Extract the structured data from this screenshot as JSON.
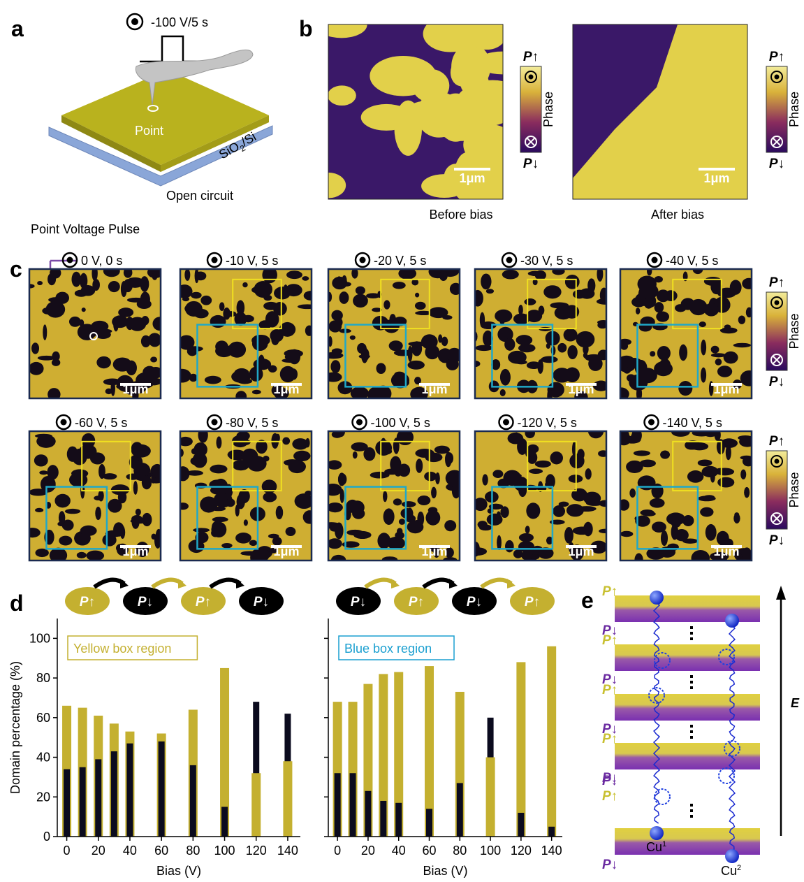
{
  "panel_a": {
    "label": "a",
    "pulse": "-100 V/5 s",
    "point": "Point",
    "substrate": "SiO",
    "substrate_sub": "2",
    "substrate_rest": "/Si",
    "circuit": "Open circuit",
    "caption": "Point Voltage Pulse"
  },
  "panel_b": {
    "label": "b",
    "images": [
      {
        "caption": "Before bias"
      },
      {
        "caption": "After bias"
      }
    ]
  },
  "panel_c": {
    "label": "c",
    "images": [
      {
        "title": "0 V, 0 s"
      },
      {
        "title": "-10 V, 5 s"
      },
      {
        "title": "-20 V, 5 s"
      },
      {
        "title": "-30 V, 5 s"
      },
      {
        "title": "-40 V, 5 s"
      },
      {
        "title": "-60 V, 5 s"
      },
      {
        "title": "-80 V, 5 s"
      },
      {
        "title": "-100 V, 5 s"
      },
      {
        "title": "-120 V, 5 s"
      },
      {
        "title": "-140 V, 5 s"
      }
    ]
  },
  "scale_bar": "1μm",
  "colorbar": {
    "up": "P↑",
    "down": "P↓",
    "title": "Phase"
  },
  "panel_d": {
    "label": "d"
  },
  "panel_e": {
    "label": "e",
    "up": "P↑",
    "down": "P↓",
    "field": "E",
    "cu": "Cu",
    "cu1": "1",
    "cu2": "2"
  },
  "chart_data": [
    {
      "type": "bar",
      "annotation": "Yellow box region",
      "annotation_color": "#c4b030",
      "states": [
        "P↑",
        "P↓",
        "P↑",
        "P↓"
      ],
      "state_colors": [
        "#c4b030",
        "#000000",
        "#c4b030",
        "#000000"
      ],
      "x": [
        0,
        10,
        20,
        30,
        40,
        60,
        80,
        100,
        120,
        140
      ],
      "series": [
        {
          "color": "#c4b030",
          "values": [
            66,
            65,
            61,
            57,
            53,
            52,
            64,
            85,
            32,
            38
          ]
        },
        {
          "color": "#0b0b1e",
          "values": [
            34,
            35,
            39,
            43,
            47,
            48,
            36,
            15,
            68,
            62
          ]
        }
      ],
      "xlim": [
        -6,
        148
      ],
      "ylim": [
        0,
        110
      ],
      "xticks": [
        0,
        20,
        40,
        60,
        80,
        100,
        120,
        140
      ],
      "yticks": [
        0,
        20,
        40,
        60,
        80,
        100
      ],
      "xlabel": "Bias (V)",
      "ylabel": "Domain percentage (%)"
    },
    {
      "type": "bar",
      "annotation": "Blue box region",
      "annotation_color": "#1a9fd0",
      "states": [
        "P↓",
        "P↑",
        "P↓",
        "P↑"
      ],
      "state_colors": [
        "#000000",
        "#c4b030",
        "#000000",
        "#c4b030"
      ],
      "x": [
        0,
        10,
        20,
        30,
        40,
        60,
        80,
        100,
        120,
        140
      ],
      "series": [
        {
          "color": "#c4b030",
          "values": [
            68,
            68,
            77,
            82,
            83,
            86,
            73,
            40,
            88,
            96
          ]
        },
        {
          "color": "#0b0b1e",
          "values": [
            32,
            32,
            23,
            18,
            17,
            14,
            27,
            60,
            12,
            5
          ]
        }
      ],
      "xlim": [
        -6,
        147
      ],
      "ylim": [
        0,
        110
      ],
      "xticks": [
        0,
        20,
        40,
        60,
        80,
        100,
        120,
        140
      ],
      "yticks": [
        0,
        20,
        40,
        60,
        80,
        100
      ],
      "ytick_labels": false,
      "xlabel": "Bias (V)"
    }
  ]
}
